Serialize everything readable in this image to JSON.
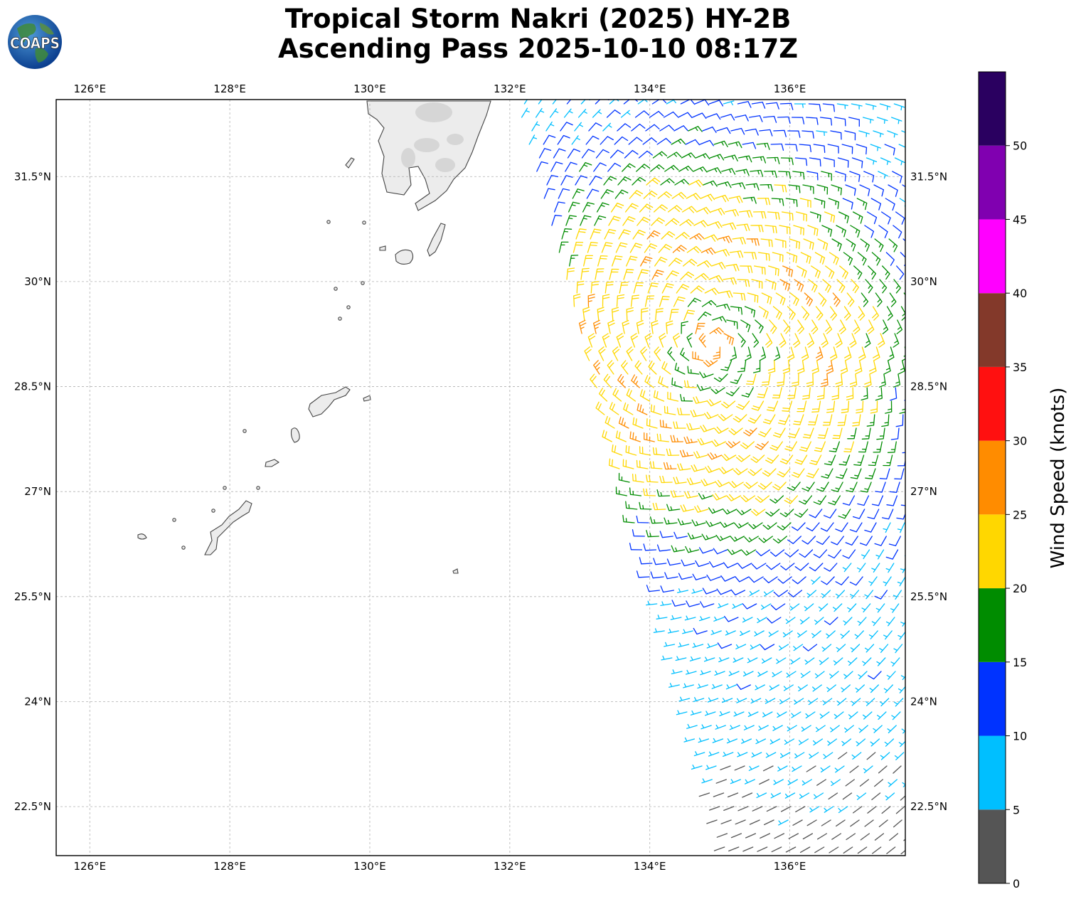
{
  "title": {
    "line1": "Tropical Storm Nakri (2025) HY-2B",
    "line2": "Ascending Pass 2025-10-10 08:17Z"
  },
  "logo": {
    "text": "COAPS",
    "icon": "globe-icon"
  },
  "map": {
    "extent": {
      "lon_min": 125.52,
      "lon_max": 137.65,
      "lat_min": 21.8,
      "lat_max": 32.6
    },
    "grid": true,
    "lon_ticks": [
      {
        "value": 126,
        "label": "126°E"
      },
      {
        "value": 128,
        "label": "128°E"
      },
      {
        "value": 130,
        "label": "130°E"
      },
      {
        "value": 132,
        "label": "132°E"
      },
      {
        "value": 134,
        "label": "134°E"
      },
      {
        "value": 136,
        "label": "136°E"
      }
    ],
    "lat_ticks": [
      {
        "value": 31.5,
        "label": "31.5°N"
      },
      {
        "value": 30,
        "label": "30°N"
      },
      {
        "value": 28.5,
        "label": "28.5°N"
      },
      {
        "value": 27,
        "label": "27°N"
      },
      {
        "value": 25.5,
        "label": "25.5°N"
      },
      {
        "value": 24,
        "label": "24°N"
      },
      {
        "value": 22.5,
        "label": "22.5°N"
      }
    ],
    "storm_center": {
      "lon": 134.9,
      "lat": 29.1
    },
    "swath": {
      "lon_at_north_edge": 132.1,
      "lon_at_south_edge": 135.1
    }
  },
  "colorbar": {
    "label": "Wind Speed (knots)",
    "ticks": [
      "0",
      "5",
      "10",
      "15",
      "20",
      "25",
      "30",
      "35",
      "40",
      "45",
      "50"
    ],
    "bins": [
      {
        "min": 0,
        "max": 5,
        "color": "#555555"
      },
      {
        "min": 5,
        "max": 10,
        "color": "#00bfff"
      },
      {
        "min": 10,
        "max": 15,
        "color": "#0033ff"
      },
      {
        "min": 15,
        "max": 20,
        "color": "#008c00"
      },
      {
        "min": 20,
        "max": 25,
        "color": "#ffd700"
      },
      {
        "min": 25,
        "max": 30,
        "color": "#ff8c00"
      },
      {
        "min": 30,
        "max": 35,
        "color": "#ff1010"
      },
      {
        "min": 35,
        "max": 40,
        "color": "#83392a"
      },
      {
        "min": 40,
        "max": 45,
        "color": "#ff00ff"
      },
      {
        "min": 45,
        "max": 50,
        "color": "#8000b0"
      },
      {
        "min": 50,
        "max": 55,
        "color": "#2a0060"
      }
    ]
  },
  "colors": {
    "land_fill": "#ececec",
    "coast": "#444444",
    "grid": "#b0b0b0"
  }
}
